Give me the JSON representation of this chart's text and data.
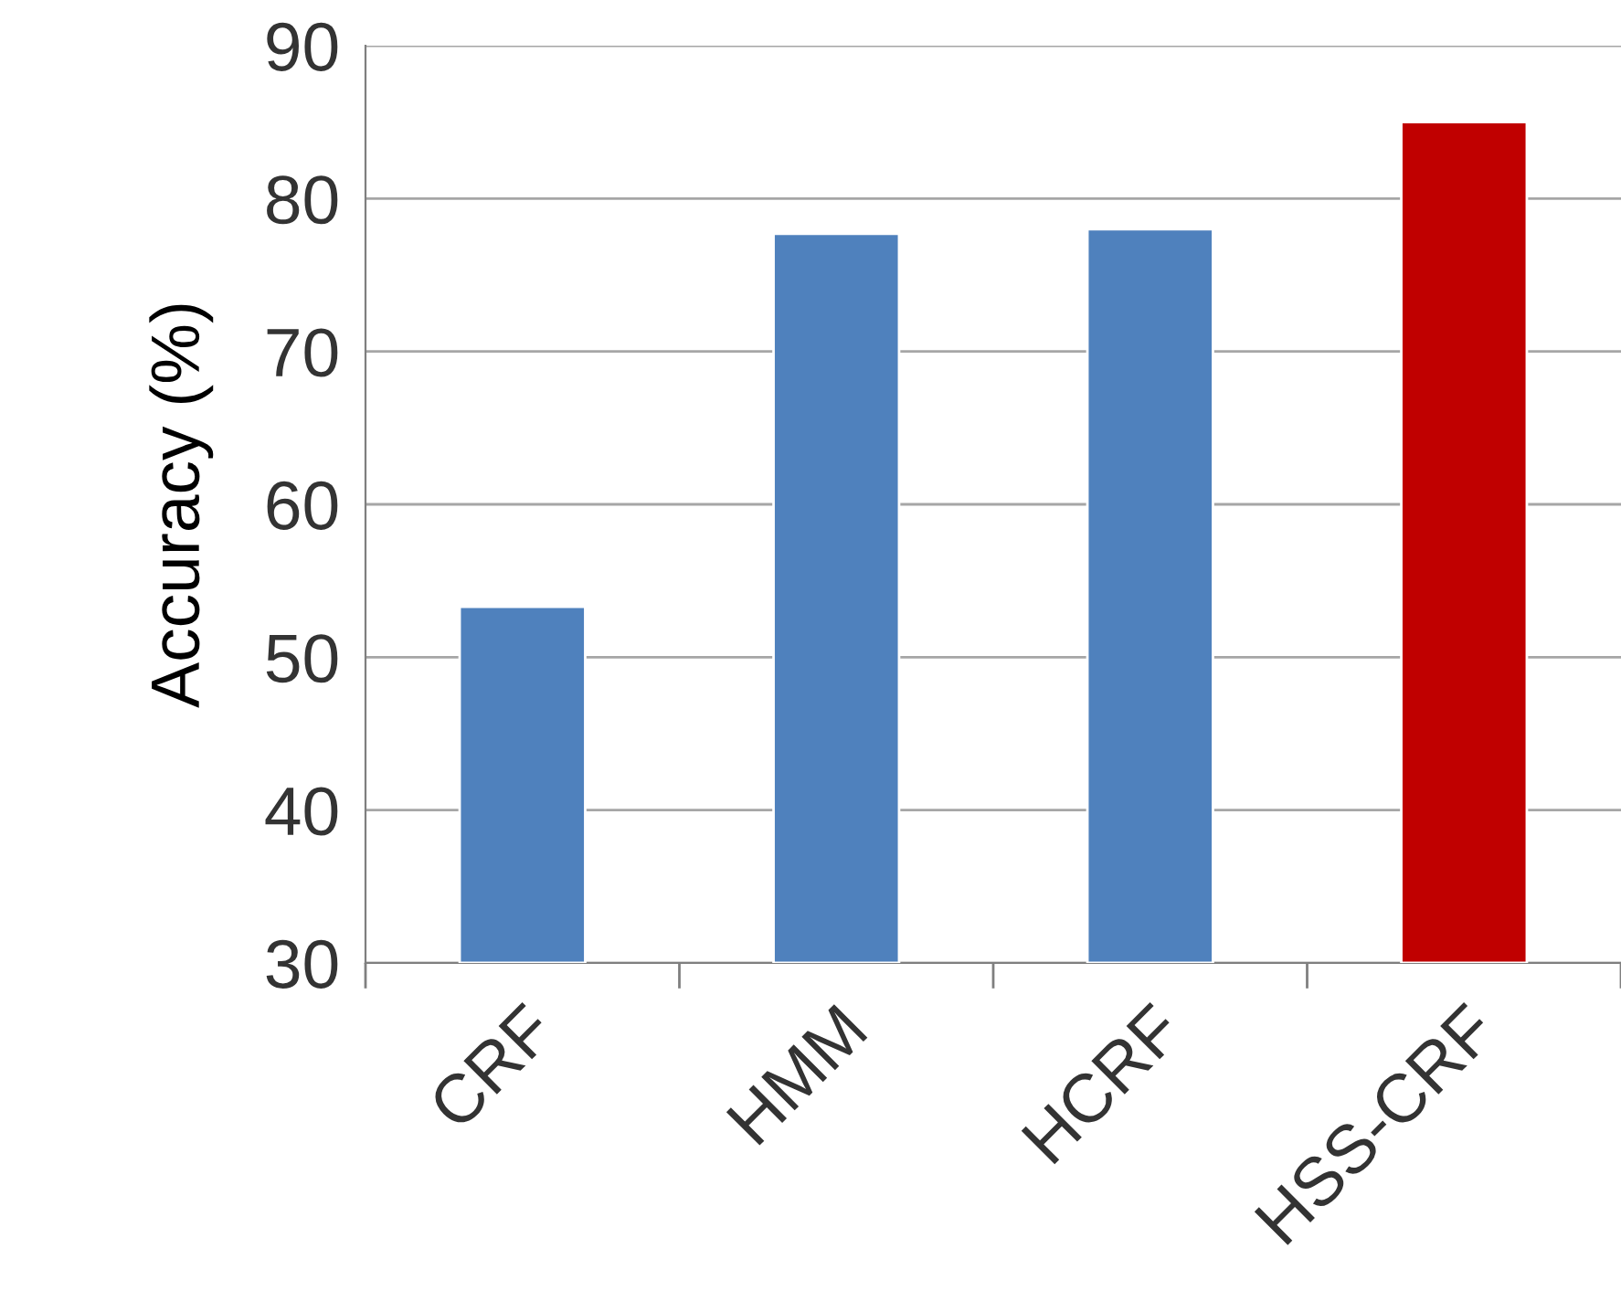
{
  "chart_data": {
    "type": "bar",
    "ylabel": "Accuracy (%)",
    "categories": [
      "CRF",
      "HMM",
      "HCRF",
      "HSS-CRF"
    ],
    "values": [
      53.3,
      77.7,
      78.0,
      85.0
    ],
    "colors": [
      "#4f81bd",
      "#4f81bd",
      "#4f81bd",
      "#c00000"
    ],
    "ylim": [
      30,
      90
    ],
    "yticks": [
      30,
      40,
      50,
      60,
      70,
      80,
      90
    ],
    "grid": "y",
    "legend": false
  }
}
